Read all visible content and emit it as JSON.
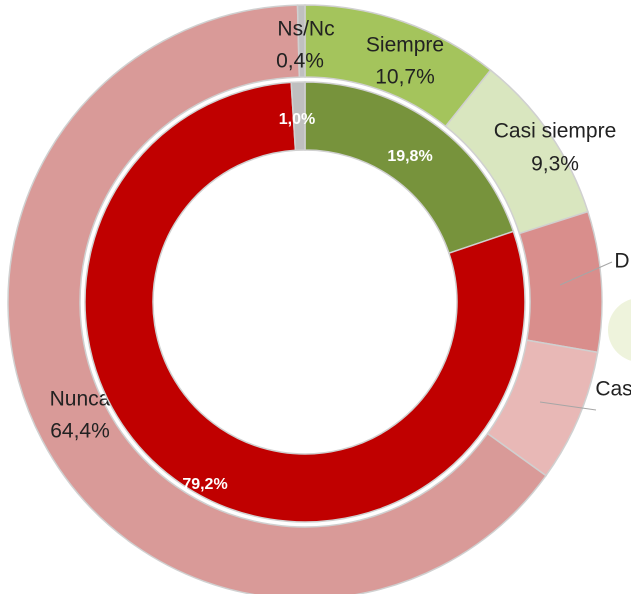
{
  "chart_data": [
    {
      "type": "pie",
      "categories": [
        "Siempre",
        "Casi siempre",
        "D",
        "Cas",
        "Nunca",
        "Ns/Nc"
      ],
      "values": [
        10.7,
        9.3,
        7.6,
        7.2,
        64.4,
        0.4
      ],
      "value_labels": [
        "10,7%",
        "9,3%",
        null,
        null,
        "64,4%",
        "0,4%"
      ],
      "colors": [
        "#a4c45c",
        "#d9e6bf",
        "#d98e8c",
        "#e8b8b6",
        "#d99a98",
        "#c0c0c0"
      ]
    },
    {
      "type": "pie",
      "categories": [
        null,
        null,
        null
      ],
      "values": [
        19.8,
        79.2,
        1.0
      ],
      "value_labels": [
        "19,8%",
        "79,2%",
        "1,0%"
      ],
      "colors": [
        "#77933c",
        "#c00000",
        "#bfbfbf"
      ]
    }
  ]
}
